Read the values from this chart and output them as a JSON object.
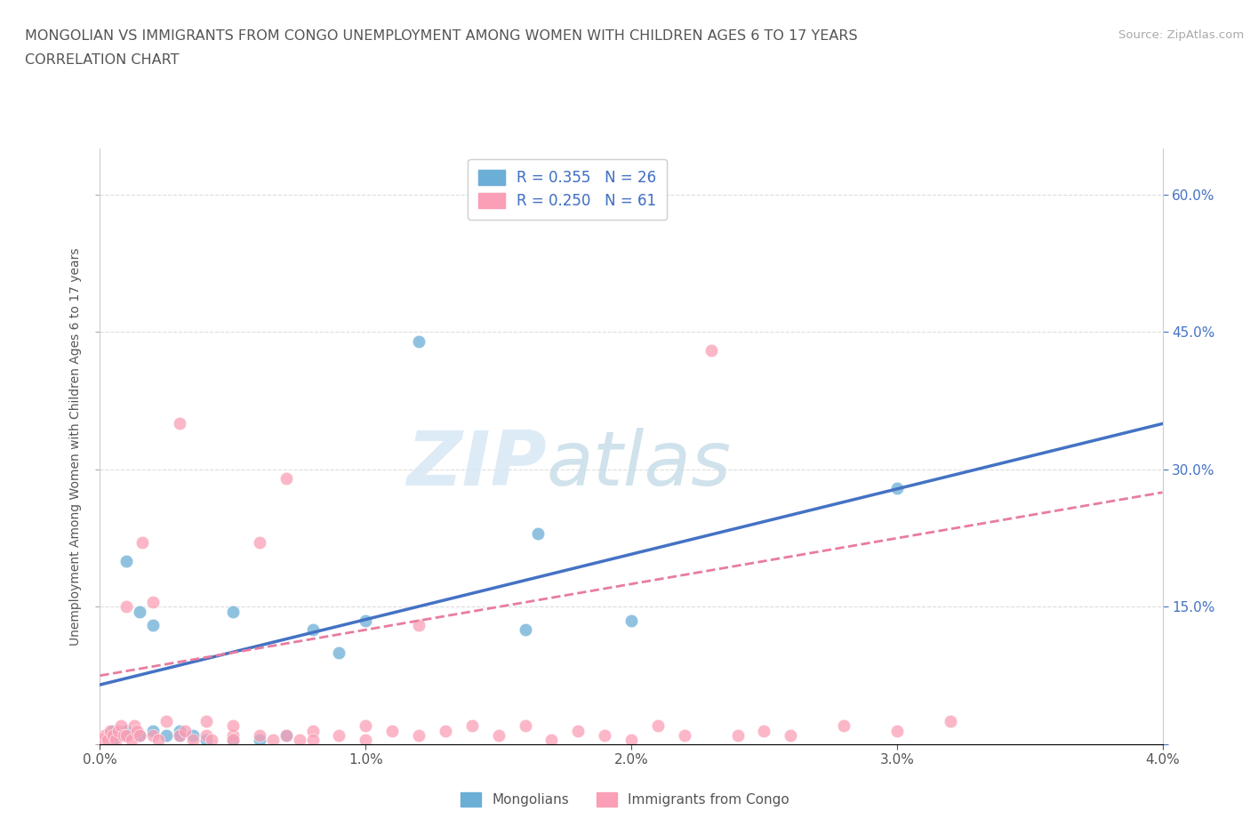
{
  "title_line1": "MONGOLIAN VS IMMIGRANTS FROM CONGO UNEMPLOYMENT AMONG WOMEN WITH CHILDREN AGES 6 TO 17 YEARS",
  "title_line2": "CORRELATION CHART",
  "source_text": "Source: ZipAtlas.com",
  "ylabel": "Unemployment Among Women with Children Ages 6 to 17 years",
  "xlim": [
    0.0,
    0.04
  ],
  "ylim": [
    0.0,
    0.65
  ],
  "xticks": [
    0.0,
    0.01,
    0.02,
    0.03,
    0.04
  ],
  "xticklabels": [
    "0.0%",
    "1.0%",
    "2.0%",
    "3.0%",
    "4.0%"
  ],
  "yticks": [
    0.0,
    0.15,
    0.3,
    0.45,
    0.6
  ],
  "yticklabels_right": [
    "",
    "15.0%",
    "30.0%",
    "45.0%",
    "60.0%"
  ],
  "legend_labels": [
    "Mongolians",
    "Immigrants from Congo"
  ],
  "mongolian_color": "#6baed6",
  "congo_color": "#fa9fb5",
  "trend_blue": "#4472c4",
  "trend_pink": "#e87ca0",
  "mongolian_R": 0.355,
  "mongolian_N": 26,
  "congo_R": 0.25,
  "congo_N": 61,
  "watermark_zip": "ZIP",
  "watermark_atlas": "atlas",
  "mongolian_scatter_x": [
    0.0005,
    0.001,
    0.0005,
    0.001,
    0.0015,
    0.0015,
    0.002,
    0.002,
    0.0025,
    0.003,
    0.001,
    0.003,
    0.0035,
    0.004,
    0.005,
    0.005,
    0.006,
    0.007,
    0.008,
    0.009,
    0.01,
    0.012,
    0.016,
    0.02,
    0.03,
    0.0165
  ],
  "mongolian_scatter_y": [
    0.005,
    0.01,
    0.015,
    0.015,
    0.01,
    0.145,
    0.015,
    0.13,
    0.01,
    0.015,
    0.2,
    0.01,
    0.01,
    0.005,
    0.005,
    0.145,
    0.005,
    0.01,
    0.125,
    0.1,
    0.135,
    0.44,
    0.125,
    0.135,
    0.28,
    0.23
  ],
  "congo_scatter_x": [
    0.0001,
    0.0002,
    0.0003,
    0.0004,
    0.0005,
    0.0006,
    0.0007,
    0.0008,
    0.0009,
    0.001,
    0.001,
    0.0012,
    0.0013,
    0.0014,
    0.0015,
    0.0016,
    0.002,
    0.002,
    0.0022,
    0.0025,
    0.003,
    0.003,
    0.0032,
    0.0035,
    0.004,
    0.004,
    0.0042,
    0.005,
    0.005,
    0.005,
    0.006,
    0.006,
    0.0065,
    0.007,
    0.007,
    0.0075,
    0.008,
    0.008,
    0.009,
    0.01,
    0.01,
    0.011,
    0.012,
    0.012,
    0.013,
    0.014,
    0.015,
    0.016,
    0.017,
    0.018,
    0.019,
    0.02,
    0.021,
    0.022,
    0.023,
    0.024,
    0.025,
    0.026,
    0.028,
    0.03,
    0.032
  ],
  "congo_scatter_y": [
    0.005,
    0.01,
    0.005,
    0.015,
    0.01,
    0.005,
    0.015,
    0.02,
    0.01,
    0.01,
    0.15,
    0.005,
    0.02,
    0.015,
    0.01,
    0.22,
    0.01,
    0.155,
    0.005,
    0.025,
    0.01,
    0.35,
    0.015,
    0.005,
    0.01,
    0.025,
    0.005,
    0.01,
    0.005,
    0.02,
    0.01,
    0.22,
    0.005,
    0.01,
    0.29,
    0.005,
    0.015,
    0.005,
    0.01,
    0.02,
    0.005,
    0.015,
    0.13,
    0.01,
    0.015,
    0.02,
    0.01,
    0.02,
    0.005,
    0.015,
    0.01,
    0.005,
    0.02,
    0.01,
    0.43,
    0.01,
    0.015,
    0.01,
    0.02,
    0.015,
    0.025
  ]
}
